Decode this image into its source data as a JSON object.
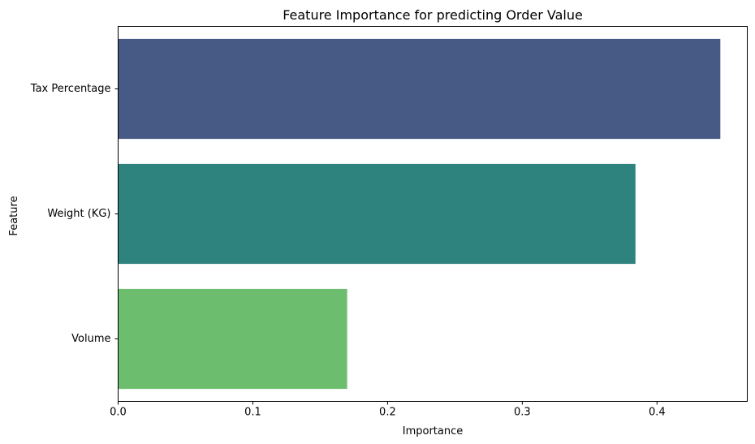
{
  "chart_data": {
    "type": "bar",
    "orientation": "horizontal",
    "title": "Feature Importance for predicting Order Value",
    "xlabel": "Importance",
    "ylabel": "Feature",
    "categories": [
      "Tax Percentage",
      "Weight (KG)",
      "Volume"
    ],
    "values": [
      0.447,
      0.384,
      0.17
    ],
    "colors": [
      "#465a85",
      "#2e837e",
      "#6cbd6d"
    ],
    "xlim": [
      0,
      0.467
    ],
    "x_ticks": [
      0.0,
      0.1,
      0.2,
      0.3,
      0.4
    ],
    "x_tick_labels": [
      "0.0",
      "0.1",
      "0.2",
      "0.3",
      "0.4"
    ],
    "grid": false,
    "legend": "none"
  }
}
